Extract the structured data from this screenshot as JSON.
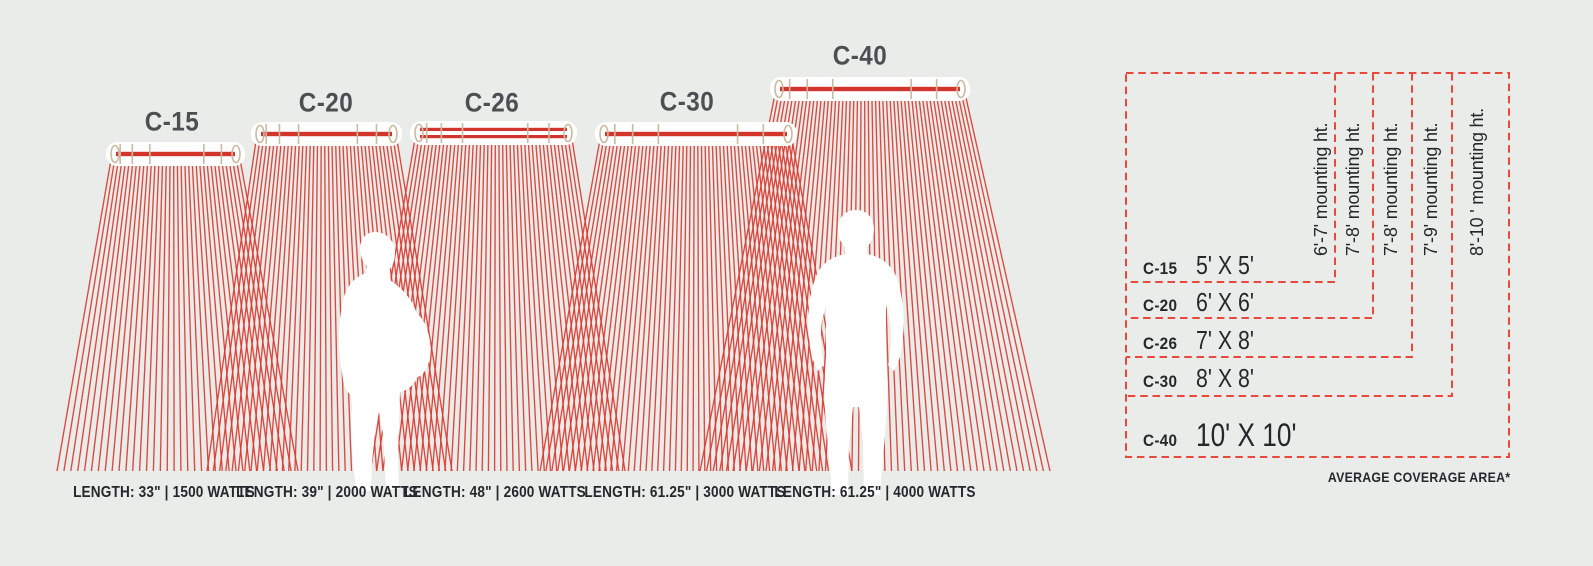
{
  "colors": {
    "background": "#e9ece8",
    "ray_red": "#dc3a31",
    "heater_bar_red": "#d2352c",
    "dash_red": "#e8493c",
    "bracket_tan": "#c9baa2",
    "pill_white": "#ffffff",
    "model_label_gray": "#4b4f52",
    "text_dark": "#24272b",
    "silhouette_white": "#ffffff"
  },
  "heaters": [
    {
      "model": "C-15",
      "spec": "LENGTH: 33\" | 1500 WATTS",
      "coverage": "5' X 5'",
      "mounting_height": "6'-7' mounting ht.",
      "dual_element": false
    },
    {
      "model": "C-20",
      "spec": "LENGTH: 39\" | 2000 WATTS",
      "coverage": "6' X 6'",
      "mounting_height": "7'-8' mounting ht.",
      "dual_element": false
    },
    {
      "model": "C-26",
      "spec": "LENGTH: 48\" | 2600 WATTS",
      "coverage": "7' X 8'",
      "mounting_height": "7'-8' mounting ht.",
      "dual_element": true
    },
    {
      "model": "C-30",
      "spec": "LENGTH: 61.25\" | 3000 WATTS",
      "coverage": "8' X 8'",
      "mounting_height": "7'-9' mounting ht.",
      "dual_element": false
    },
    {
      "model": "C-40",
      "spec": "LENGTH: 61.25\" | 4000 WATTS",
      "coverage": "10' X 10'",
      "mounting_height": "8'-10 ' mounting ht.",
      "dual_element": false
    }
  ],
  "coverage_table": {
    "footnote": "AVERAGE COVERAGE AREA*"
  }
}
